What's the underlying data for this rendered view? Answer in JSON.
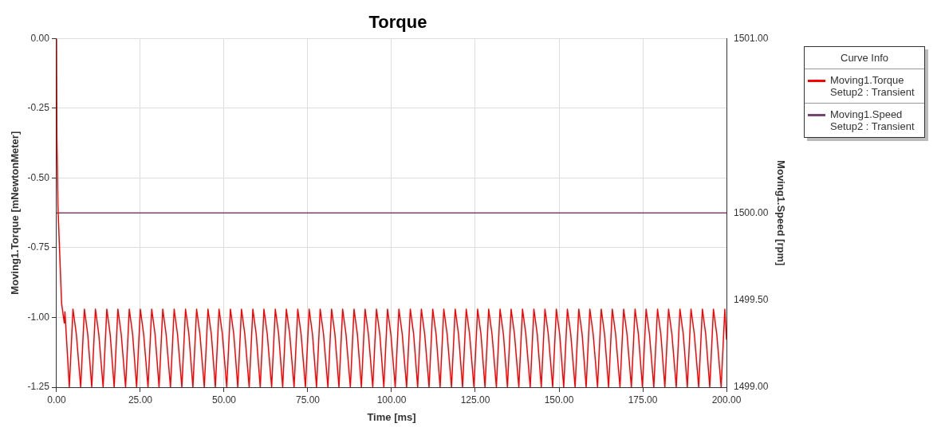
{
  "chart_data": {
    "type": "line",
    "title": "Torque",
    "xlabel": "Time [ms]",
    "ylabel": "Moving1.Torque [mNewtonMeter]",
    "y2label": "Moving1.Speed [rpm]",
    "legend_title": "Curve Info",
    "legend": "top right",
    "grid": true,
    "marker": "none",
    "line_style": "solid",
    "xlim": [
      0,
      200
    ],
    "xticks": [
      {
        "value": 0,
        "label": "0.00"
      },
      {
        "value": 25,
        "label": "25.00"
      },
      {
        "value": 50,
        "label": "50.00"
      },
      {
        "value": 75,
        "label": "75.00"
      },
      {
        "value": 100,
        "label": "100.00"
      },
      {
        "value": 125,
        "label": "125.00"
      },
      {
        "value": 150,
        "label": "150.00"
      },
      {
        "value": 175,
        "label": "175.00"
      },
      {
        "value": 200,
        "label": "200.00"
      }
    ],
    "ylim": [
      -1.25,
      0
    ],
    "yticks": [
      {
        "value": 0,
        "label": "0.00"
      },
      {
        "value": -0.25,
        "label": "-0.25"
      },
      {
        "value": -0.5,
        "label": "-0.50"
      },
      {
        "value": -0.75,
        "label": "-0.75"
      },
      {
        "value": -1,
        "label": "-1.00"
      },
      {
        "value": -1.25,
        "label": "-1.25"
      }
    ],
    "y2lim": [
      1499,
      1501
    ],
    "y2ticks": [
      {
        "value": 1499,
        "label": "1499.00"
      },
      {
        "value": 1499.5,
        "label": "1499.50"
      },
      {
        "value": 1500,
        "label": "1500.00"
      },
      {
        "value": 1501,
        "label": "1501.00"
      }
    ],
    "series": [
      {
        "name": "Moving1.Torque\nSetup2 : Transient",
        "color": "#ff0000",
        "x": [
          0,
          0.1,
          0.4,
          1.5,
          2.3,
          2.5,
          3.8,
          4.9,
          5.9,
          7.2,
          8.3,
          9.3,
          10.5,
          11.6,
          12.6,
          13.9,
          15,
          16,
          17.2,
          18.3,
          19.3,
          20.6,
          21.7,
          22.7,
          23.9,
          25,
          26,
          27.3,
          28.4,
          29.4,
          30.6,
          31.7,
          32.7,
          34,
          35.1,
          36.1,
          37.4,
          38.5,
          39.5,
          40.7,
          41.8,
          42.8,
          44.1,
          45.2,
          46.2,
          47.4,
          48.5,
          49.5,
          50.8,
          51.9,
          52.9,
          54.1,
          55.2,
          56.2,
          57.5,
          58.6,
          59.6,
          60.8,
          61.9,
          62.9,
          64.2,
          65.3,
          66.3,
          67.5,
          68.6,
          69.6,
          70.9,
          72,
          73,
          74.3,
          75.4,
          76.4,
          77.6,
          78.7,
          79.7,
          81,
          82.1,
          83.1,
          84.3,
          85.4,
          86.4,
          87.7,
          88.8,
          89.8,
          91,
          92.1,
          93.1,
          94.4,
          95.5,
          96.5,
          97.7,
          98.8,
          99.8,
          101.1,
          102.2,
          103.2,
          104.5,
          105.6,
          106.6,
          107.8,
          108.9,
          109.9,
          111.2,
          112.3,
          113.3,
          114.5,
          115.6,
          116.6,
          117.9,
          119,
          120,
          121.2,
          122.3,
          123.3,
          124.6,
          125.7,
          126.7,
          127.9,
          129,
          130,
          131.3,
          132.4,
          133.4,
          134.6,
          135.7,
          136.7,
          138,
          139.1,
          140.1,
          141.4,
          142.5,
          143.5,
          144.7,
          145.8,
          146.8,
          148.1,
          149.2,
          150.2,
          151.4,
          152.5,
          153.5,
          154.8,
          155.9,
          156.9,
          158.1,
          159.2,
          160.2,
          161.5,
          162.6,
          163.6,
          164.8,
          165.9,
          166.9,
          168.2,
          169.3,
          170.3,
          171.6,
          172.7,
          173.7,
          174.9,
          176,
          177,
          178.3,
          179.4,
          180.4,
          181.6,
          182.7,
          183.7,
          185,
          186.1,
          187.1,
          188.3,
          189.4,
          190.4,
          191.7,
          192.8,
          193.8,
          195,
          196.1,
          197.1,
          198.4,
          199.5,
          200
        ],
        "values": [
          0,
          -0.35,
          -0.6,
          -0.95,
          -1.02,
          -0.98,
          -1.25,
          -0.97,
          -1.06,
          -1.25,
          -0.97,
          -1.06,
          -1.25,
          -0.97,
          -1.06,
          -1.25,
          -0.97,
          -1.06,
          -1.25,
          -0.97,
          -1.06,
          -1.25,
          -0.97,
          -1.06,
          -1.25,
          -0.97,
          -1.06,
          -1.25,
          -0.97,
          -1.06,
          -1.25,
          -0.97,
          -1.06,
          -1.25,
          -0.97,
          -1.06,
          -1.25,
          -0.97,
          -1.06,
          -1.25,
          -0.97,
          -1.06,
          -1.25,
          -0.97,
          -1.06,
          -1.25,
          -0.97,
          -1.06,
          -1.25,
          -0.97,
          -1.06,
          -1.25,
          -0.97,
          -1.06,
          -1.25,
          -0.97,
          -1.06,
          -1.25,
          -0.97,
          -1.06,
          -1.25,
          -0.97,
          -1.06,
          -1.25,
          -0.97,
          -1.06,
          -1.25,
          -0.97,
          -1.06,
          -1.25,
          -0.97,
          -1.06,
          -1.25,
          -0.97,
          -1.06,
          -1.25,
          -0.97,
          -1.06,
          -1.25,
          -0.97,
          -1.06,
          -1.25,
          -0.97,
          -1.06,
          -1.25,
          -0.97,
          -1.06,
          -1.25,
          -0.97,
          -1.06,
          -1.25,
          -0.97,
          -1.06,
          -1.25,
          -0.97,
          -1.06,
          -1.25,
          -0.97,
          -1.06,
          -1.25,
          -0.97,
          -1.06,
          -1.25,
          -0.97,
          -1.06,
          -1.25,
          -0.97,
          -1.06,
          -1.25,
          -0.97,
          -1.06,
          -1.25,
          -0.97,
          -1.06,
          -1.25,
          -0.97,
          -1.06,
          -1.25,
          -0.97,
          -1.06,
          -1.25,
          -0.97,
          -1.06,
          -1.25,
          -0.97,
          -1.06,
          -1.25,
          -0.97,
          -1.06,
          -1.25,
          -0.97,
          -1.06,
          -1.25,
          -0.97,
          -1.06,
          -1.25,
          -0.97,
          -1.06,
          -1.25,
          -0.97,
          -1.06,
          -1.25,
          -0.97,
          -1.06,
          -1.25,
          -0.97,
          -1.06,
          -1.25,
          -0.97,
          -1.06,
          -1.25,
          -0.97,
          -1.06,
          -1.25,
          -0.97,
          -1.06,
          -1.25,
          -0.97,
          -1.06,
          -1.25,
          -0.97,
          -1.06,
          -1.25,
          -0.97,
          -1.06,
          -1.25,
          -0.97,
          -1.06,
          -1.25,
          -0.97,
          -1.06,
          -1.25,
          -0.97,
          -1.06,
          -1.25,
          -0.97,
          -1.06,
          -1.25,
          -0.97,
          -1.06,
          -1.25,
          -0.97,
          -1.08
        ]
      },
      {
        "name": "Moving1.Speed\nSetup2 : Transient",
        "color": "#7b4470",
        "axis": "y2",
        "x": [
          0,
          200
        ],
        "values": [
          1500,
          1500
        ]
      }
    ]
  }
}
